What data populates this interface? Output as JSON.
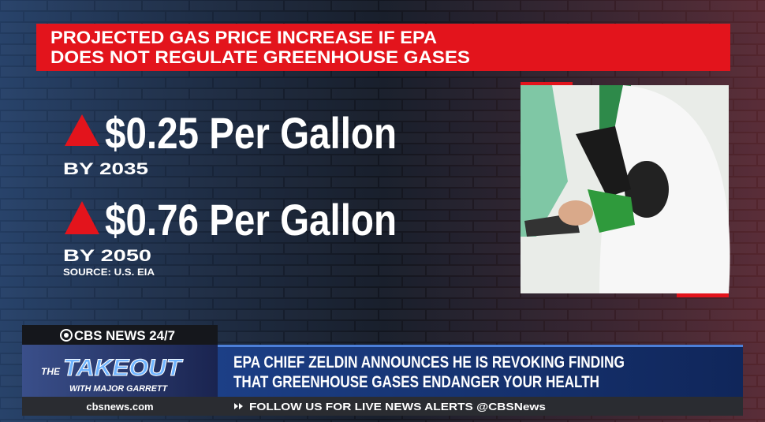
{
  "graphic": {
    "title_lines": [
      "PROJECTED GAS PRICE INCREASE IF EPA",
      "DOES NOT REGULATE GREENHOUSE GASES"
    ],
    "items": [
      {
        "price": "$0.25 Per Gallon",
        "year": "BY 2035"
      },
      {
        "price": "$0.76 Per Gallon",
        "year": "BY 2050"
      }
    ],
    "source": "SOURCE: U.S. EIA"
  },
  "lower_third": {
    "network": "CBS NEWS 24/7",
    "show_prefix": "THE",
    "show_name": "TAKEOUT",
    "show_host": "WITH MAJOR GARRETT",
    "headline_lines": [
      "EPA CHIEF ZELDIN ANNOUNCES HE IS REVOKING FINDING",
      "THAT GREENHOUSE GASES ENDANGER YOUR HEALTH"
    ],
    "website": "cbsnews.com",
    "ticker": "FOLLOW US FOR LIVE NEWS ALERTS @CBSNews"
  }
}
